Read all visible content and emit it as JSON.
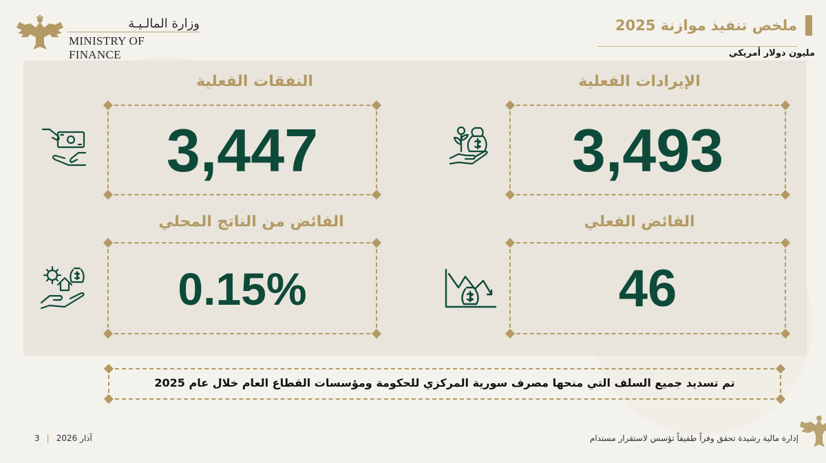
{
  "header": {
    "ministry_ar": "وزارة المالـيـة",
    "ministry_en": "MINISTRY OF FINANCE",
    "title": "ملخص تنفيذ موازنة 2025",
    "unit": "مليون دولار أمريكي"
  },
  "cards": {
    "revenue": {
      "label": "الإيرادات الفعلية",
      "value": "3,493",
      "icon": "money-bag-plant-hand-icon"
    },
    "expenditure": {
      "label": "النفقات الفعلية",
      "value": "3,447",
      "icon": "cash-hand-icon"
    },
    "surplus": {
      "label": "الفائض الفعلي",
      "value": "46",
      "icon": "declining-chart-money-bag-icon"
    },
    "surplus_gdp": {
      "label": "الفائض من الناتج المحلي",
      "value": "0.15%",
      "icon": "gear-house-money-hand-icon"
    }
  },
  "note": "تم تسديد جميع السلف التي منحها مصرف سورية المركزي للحكومة ومؤسسات القطاع العام خلال عام 2025",
  "footer": {
    "tagline": "إدارة مالية رشيدة تحقق وفراً طفيفاً تؤسس لاستقرار مستدام",
    "date": "آذار 2026",
    "page": "3"
  },
  "colors": {
    "gold": "#b39a64",
    "green": "#0e4a3a",
    "panel": "#e9e5dc",
    "background": "#f4f2ec"
  }
}
